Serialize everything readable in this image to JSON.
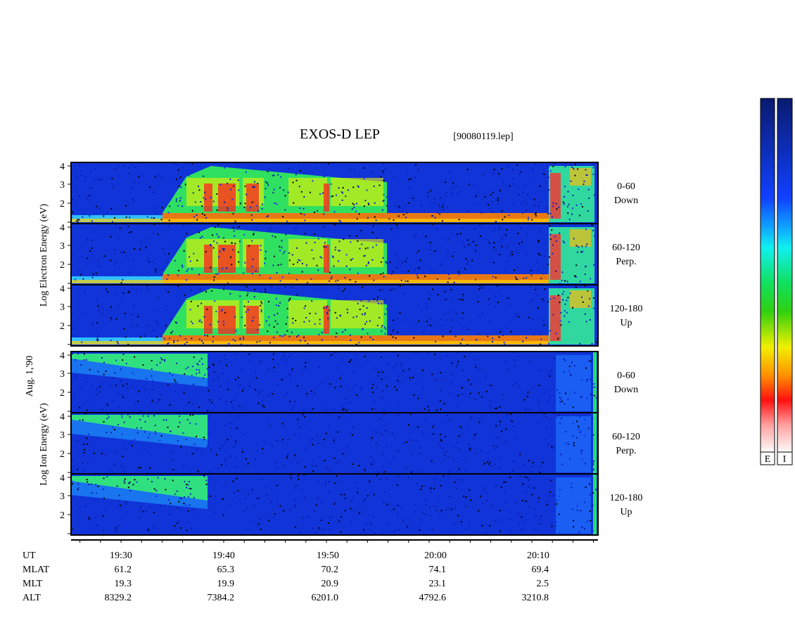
{
  "header": {
    "title": "EXOS-D LEP",
    "file": "[90080119.lep]"
  },
  "date": "Aug. 1,'90",
  "groups": [
    {
      "label": "Log Electron Energy (eV)",
      "panels": [
        {
          "range": "0-60",
          "direction": "Down"
        },
        {
          "range": "60-120",
          "direction": "Perp."
        },
        {
          "range": "120-180",
          "direction": "Up"
        }
      ]
    },
    {
      "label": "Log Ion Energy (eV)",
      "panels": [
        {
          "range": "0-60",
          "direction": "Down"
        },
        {
          "range": "60-120",
          "direction": "Perp."
        },
        {
          "range": "120-180",
          "direction": "Up"
        }
      ]
    }
  ],
  "yticks": [
    "4",
    "3",
    "2"
  ],
  "time_table": {
    "rows": [
      "UT",
      "MLAT",
      "MLT",
      "ALT"
    ],
    "columns": [
      [
        "19:30",
        "61.2",
        "19.3",
        "8329.2"
      ],
      [
        "19:40",
        "65.3",
        "19.9",
        "7384.2"
      ],
      [
        "19:50",
        "70.2",
        "20.9",
        "6201.0"
      ],
      [
        "20:00",
        "74.1",
        "23.1",
        "4792.6"
      ],
      [
        "20:10",
        "69.4",
        "2.5",
        "3210.8"
      ]
    ]
  },
  "colorbar": [
    "E",
    "I"
  ]
}
